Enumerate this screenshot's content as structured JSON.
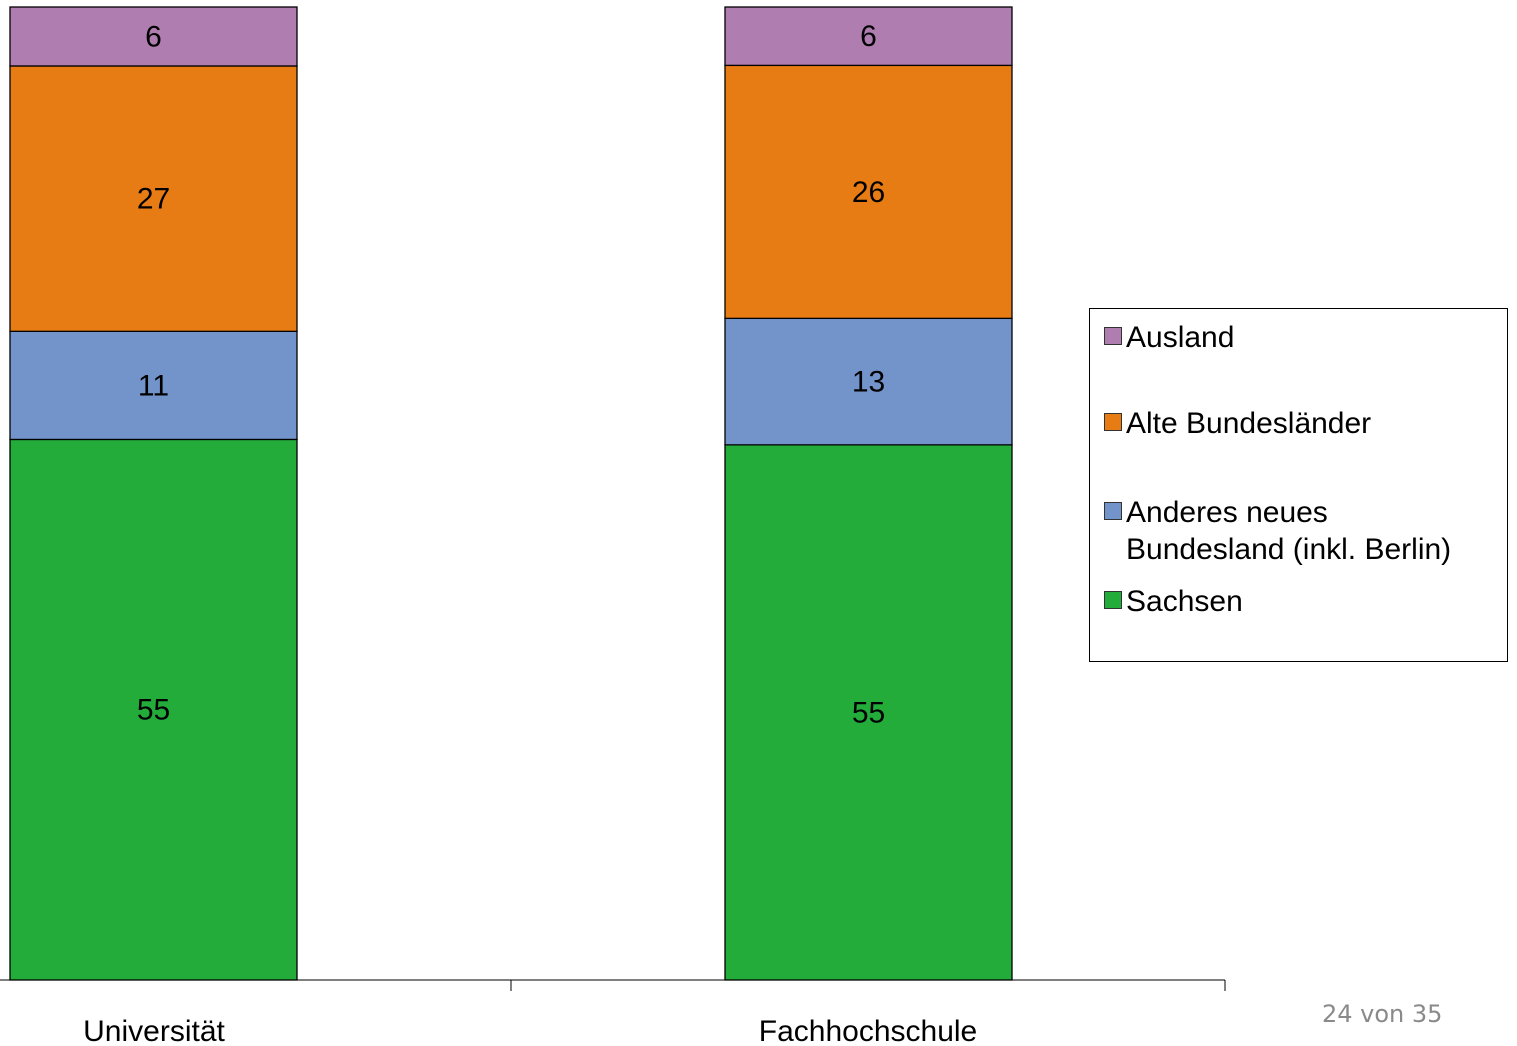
{
  "chart_data": {
    "type": "bar",
    "stacked": true,
    "categories": [
      "Universität",
      "Fachhochschule"
    ],
    "series": [
      {
        "name": "Sachsen",
        "values": [
          55,
          55
        ],
        "color": "#23AC3A"
      },
      {
        "name": "Anderes neues Bundesland (inkl. Berlin)",
        "values": [
          11,
          13
        ],
        "color": "#7394CA"
      },
      {
        "name": "Alte Bundesländer",
        "values": [
          27,
          26
        ],
        "color": "#E87C14"
      },
      {
        "name": "Ausland",
        "values": [
          6,
          6
        ],
        "color": "#B07DB1"
      }
    ],
    "legend_position": "right",
    "legend_order": [
      "Ausland",
      "Alte Bundesländer",
      "Anderes neues Bundesland (inkl. Berlin)",
      "Sachsen"
    ],
    "legend_lines": {
      "Anderes neues Bundesland (inkl. Berlin)": [
        "Anderes neues",
        "Bundesland (inkl. Berlin)"
      ]
    },
    "grid": false
  },
  "page_number": "24 von 35"
}
